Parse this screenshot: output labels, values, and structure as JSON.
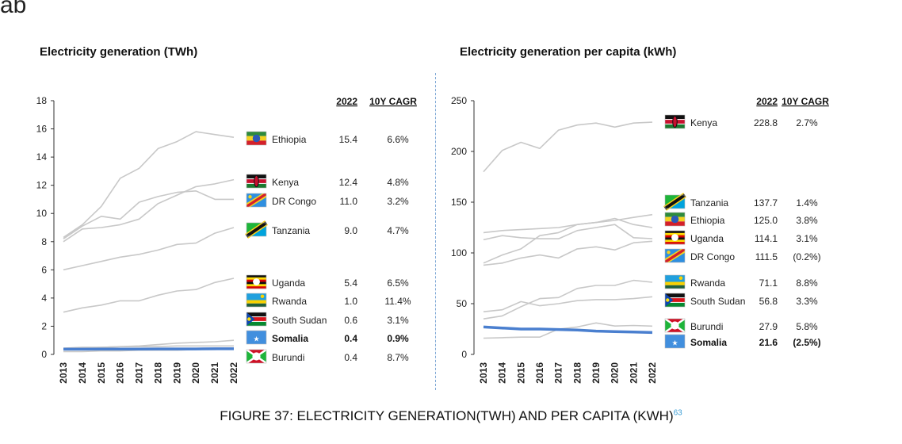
{
  "page": {
    "top_fragment": "ab",
    "caption": "FIGURE 37: ELECTRICITY GENERATION(TWH) AND PER CAPITA (KWH)",
    "caption_ref": "63"
  },
  "colors": {
    "highlight": "#4a7fcf",
    "series_grey": "#c8c8c8",
    "axis": "#333333"
  },
  "chart_data": [
    {
      "type": "line",
      "title": "Electricity generation (TWh)",
      "xlabel": "",
      "ylabel": "",
      "x": [
        "2013",
        "2014",
        "2015",
        "2016",
        "2017",
        "2018",
        "2019",
        "2020",
        "2021",
        "2022"
      ],
      "ylim": [
        0,
        18
      ],
      "yticks": [
        0,
        2,
        4,
        6,
        8,
        10,
        12,
        14,
        16,
        18
      ],
      "table_header": [
        "2022",
        "10Y CAGR"
      ],
      "series": [
        {
          "name": "Ethiopia",
          "value_2022": "15.4",
          "cagr": "6.6%",
          "flag": "ethiopia",
          "highlight": false,
          "values": [
            8.3,
            9.2,
            10.5,
            12.5,
            13.2,
            14.6,
            15.1,
            15.8,
            15.6,
            15.4
          ]
        },
        {
          "name": "Kenya",
          "value_2022": "12.4",
          "cagr": "4.8%",
          "flag": "kenya",
          "highlight": false,
          "values": [
            8.0,
            8.9,
            9.0,
            9.2,
            9.6,
            10.7,
            11.3,
            11.9,
            12.1,
            12.4
          ]
        },
        {
          "name": "DR Congo",
          "value_2022": "11.0",
          "cagr": "3.2%",
          "flag": "drcongo",
          "highlight": false,
          "values": [
            8.2,
            9.1,
            9.8,
            9.6,
            10.8,
            11.2,
            11.5,
            11.6,
            11.0,
            11.0
          ]
        },
        {
          "name": "Tanzania",
          "value_2022": "9.0",
          "cagr": "4.7%",
          "flag": "tanzania",
          "highlight": false,
          "values": [
            6.0,
            6.3,
            6.6,
            6.9,
            7.1,
            7.4,
            7.8,
            7.9,
            8.6,
            9.0
          ]
        },
        {
          "name": "Uganda",
          "value_2022": "5.4",
          "cagr": "6.5%",
          "flag": "uganda",
          "highlight": false,
          "values": [
            3.0,
            3.3,
            3.5,
            3.8,
            3.8,
            4.2,
            4.5,
            4.6,
            5.1,
            5.4
          ]
        },
        {
          "name": "Rwanda",
          "value_2022": "1.0",
          "cagr": "11.4%",
          "flag": "rwanda",
          "highlight": false,
          "values": [
            0.4,
            0.45,
            0.5,
            0.55,
            0.6,
            0.7,
            0.8,
            0.85,
            0.9,
            1.0
          ]
        },
        {
          "name": "South Sudan",
          "value_2022": "0.6",
          "cagr": "3.1%",
          "flag": "southsudan",
          "highlight": false,
          "values": [
            0.45,
            0.5,
            0.5,
            0.55,
            0.55,
            0.55,
            0.6,
            0.6,
            0.6,
            0.6
          ]
        },
        {
          "name": "Somalia",
          "value_2022": "0.4",
          "cagr": "0.9%",
          "flag": "somalia",
          "highlight": true,
          "values": [
            0.37,
            0.37,
            0.38,
            0.38,
            0.38,
            0.39,
            0.39,
            0.39,
            0.4,
            0.4
          ]
        },
        {
          "name": "Burundi",
          "value_2022": "0.4",
          "cagr": "8.7%",
          "flag": "burundi",
          "highlight": false,
          "values": [
            0.2,
            0.2,
            0.25,
            0.25,
            0.3,
            0.3,
            0.3,
            0.35,
            0.35,
            0.4
          ]
        }
      ]
    },
    {
      "type": "line",
      "title": "Electricity generation per capita (kWh)",
      "xlabel": "",
      "ylabel": "",
      "x": [
        "2013",
        "2014",
        "2015",
        "2016",
        "2017",
        "2018",
        "2019",
        "2020",
        "2021",
        "2022"
      ],
      "ylim": [
        0,
        250
      ],
      "yticks": [
        0,
        50,
        100,
        150,
        200,
        250
      ],
      "table_header": [
        "2022",
        "10Y CAGR"
      ],
      "series": [
        {
          "name": "Kenya",
          "value_2022": "228.8",
          "cagr": "2.7%",
          "flag": "kenya",
          "highlight": false,
          "values": [
            180,
            201,
            209,
            203,
            221,
            226,
            228,
            224,
            228,
            228.8
          ]
        },
        {
          "name": "Tanzania",
          "value_2022": "137.7",
          "cagr": "1.4%",
          "flag": "tanzania",
          "highlight": false,
          "values": [
            120,
            122,
            123,
            124,
            125,
            128,
            130,
            132,
            135,
            137.7
          ]
        },
        {
          "name": "Ethiopia",
          "value_2022": "125.0",
          "cagr": "3.8%",
          "flag": "ethiopia",
          "highlight": false,
          "values": [
            90,
            98,
            104,
            117,
            120,
            128,
            130,
            134,
            128,
            125.0
          ]
        },
        {
          "name": "Uganda",
          "value_2022": "114.1",
          "cagr": "3.1%",
          "flag": "uganda",
          "highlight": false,
          "values": [
            113,
            117,
            115,
            114,
            114,
            122,
            125,
            128,
            115,
            114.1
          ]
        },
        {
          "name": "DR Congo",
          "value_2022": "111.5",
          "cagr": "(0.2%)",
          "flag": "drcongo",
          "highlight": false,
          "values": [
            88,
            90,
            95,
            98,
            95,
            104,
            106,
            103,
            110,
            111.5
          ]
        },
        {
          "name": "Rwanda",
          "value_2022": "71.1",
          "cagr": "8.8%",
          "flag": "rwanda",
          "highlight": false,
          "values": [
            35,
            38,
            47,
            55,
            56,
            65,
            68,
            68,
            73,
            71.1
          ]
        },
        {
          "name": "South Sudan",
          "value_2022": "56.8",
          "cagr": "3.3%",
          "flag": "southsudan",
          "highlight": false,
          "values": [
            42,
            44,
            52,
            48,
            50,
            53,
            54,
            54,
            55,
            56.8
          ]
        },
        {
          "name": "Burundi",
          "value_2022": "27.9",
          "cagr": "5.8%",
          "flag": "burundi",
          "highlight": false,
          "values": [
            16,
            16.5,
            17,
            17,
            25,
            27,
            31,
            28,
            28.5,
            27.9
          ]
        },
        {
          "name": "Somalia",
          "value_2022": "21.6",
          "cagr": "(2.5%)",
          "flag": "somalia",
          "highlight": true,
          "values": [
            27,
            26,
            25,
            25,
            24.5,
            24,
            23,
            22.5,
            22,
            21.6
          ]
        }
      ]
    }
  ]
}
